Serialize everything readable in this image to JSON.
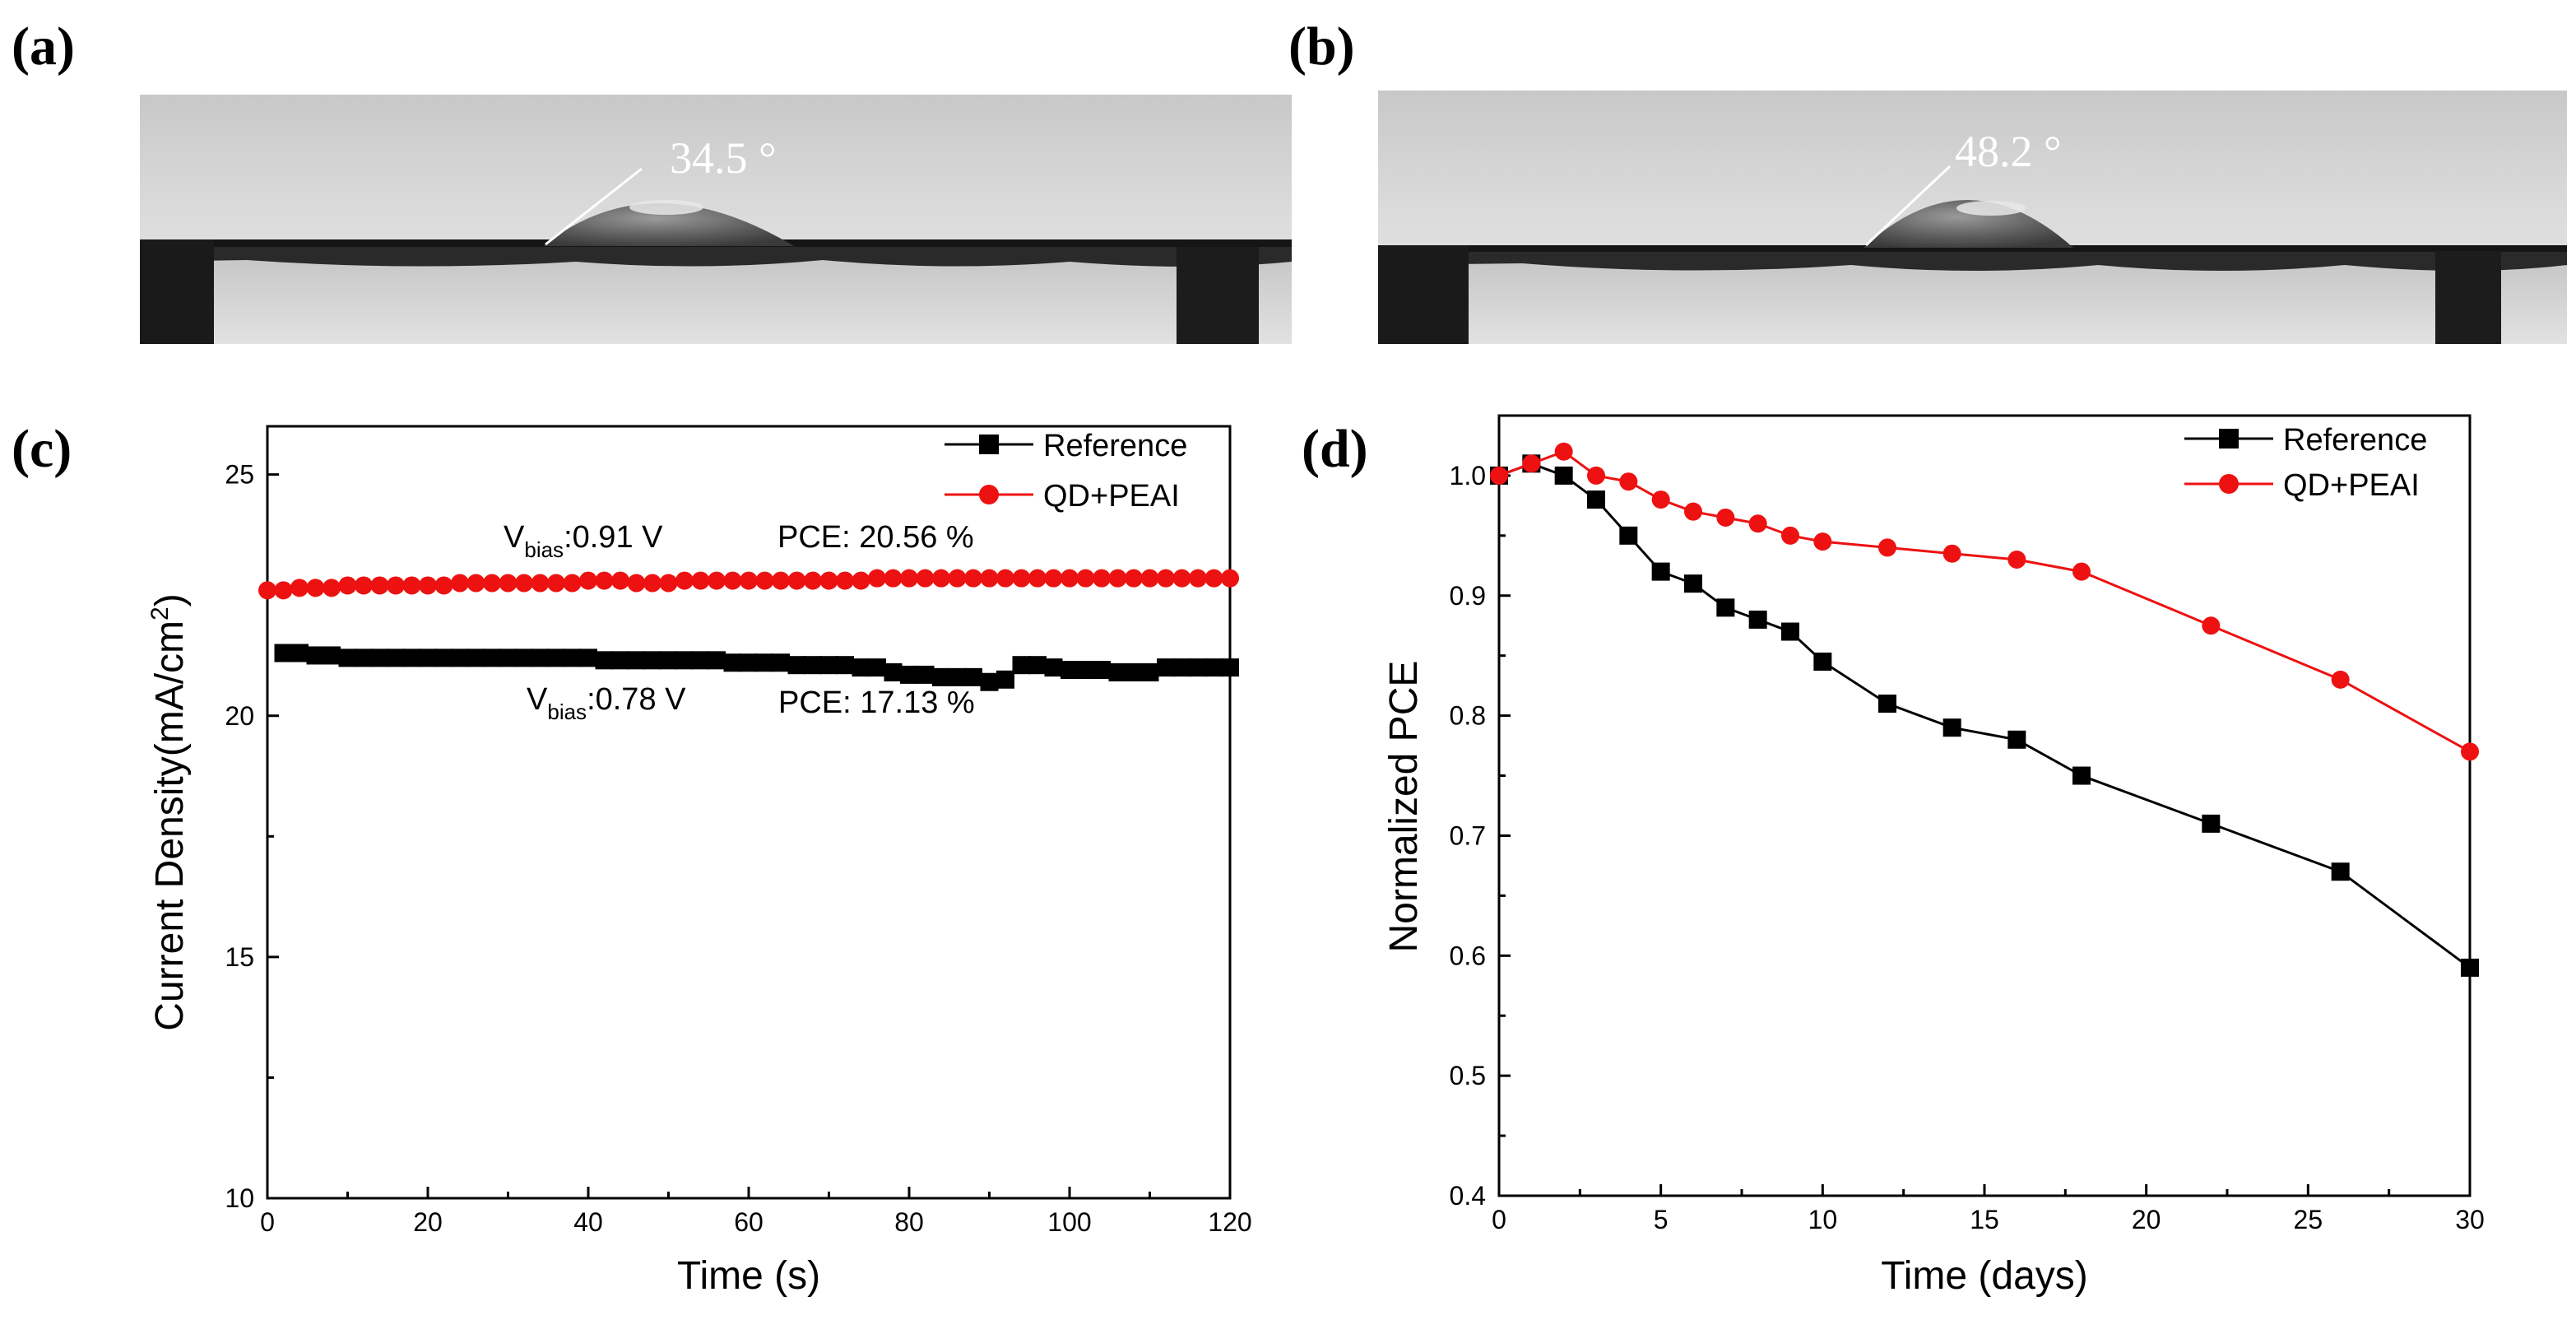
{
  "panels": {
    "a": {
      "label": "(a)",
      "angle_label": "34.5 °"
    },
    "b": {
      "label": "(b)",
      "angle_label": "48.2 °"
    },
    "c": {
      "label": "(c)"
    },
    "d": {
      "label": "(d)"
    }
  },
  "colors": {
    "reference": "#000000",
    "qd_peai": "#ee1111"
  },
  "chart_data": [
    {
      "panel": "c",
      "type": "scatter",
      "xlabel": "Time (s)",
      "ylabel": "Current Density(mA/cm²)",
      "ylabel_main": "Current Density(mA/cm",
      "ylabel_sup": "2",
      "ylabel_end": ")",
      "xlim": [
        0,
        120
      ],
      "ylim": [
        10,
        26
      ],
      "xticks": [
        0,
        20,
        40,
        60,
        80,
        100,
        120
      ],
      "yticks": [
        10,
        15,
        20,
        25
      ],
      "grid": false,
      "legend": "top-right",
      "series": [
        {
          "name": "Reference",
          "color": "#000000",
          "marker": "square",
          "x": [
            2,
            4,
            6,
            8,
            10,
            12,
            14,
            16,
            18,
            20,
            22,
            24,
            26,
            28,
            30,
            32,
            34,
            36,
            38,
            40,
            42,
            44,
            46,
            48,
            50,
            52,
            54,
            56,
            58,
            60,
            62,
            64,
            66,
            68,
            70,
            72,
            74,
            76,
            78,
            80,
            82,
            84,
            86,
            88,
            90,
            92,
            94,
            96,
            98,
            100,
            102,
            104,
            106,
            108,
            110,
            112,
            114,
            116,
            118,
            120
          ],
          "values": [
            21.3,
            21.3,
            21.25,
            21.25,
            21.2,
            21.2,
            21.2,
            21.2,
            21.2,
            21.2,
            21.2,
            21.2,
            21.2,
            21.2,
            21.2,
            21.2,
            21.2,
            21.2,
            21.2,
            21.2,
            21.15,
            21.15,
            21.15,
            21.15,
            21.15,
            21.15,
            21.15,
            21.15,
            21.1,
            21.1,
            21.1,
            21.1,
            21.05,
            21.05,
            21.05,
            21.05,
            21.0,
            21.0,
            20.9,
            20.85,
            20.85,
            20.8,
            20.8,
            20.8,
            20.7,
            20.75,
            21.05,
            21.05,
            21.0,
            20.95,
            20.95,
            20.95,
            20.9,
            20.9,
            20.9,
            21.0,
            21.0,
            21.0,
            21.0,
            21.0
          ]
        },
        {
          "name": "QD+PEAI",
          "color": "#ee1111",
          "marker": "circle",
          "x": [
            0,
            2,
            4,
            6,
            8,
            10,
            12,
            14,
            16,
            18,
            20,
            22,
            24,
            26,
            28,
            30,
            32,
            34,
            36,
            38,
            40,
            42,
            44,
            46,
            48,
            50,
            52,
            54,
            56,
            58,
            60,
            62,
            64,
            66,
            68,
            70,
            72,
            74,
            76,
            78,
            80,
            82,
            84,
            86,
            88,
            90,
            92,
            94,
            96,
            98,
            100,
            102,
            104,
            106,
            108,
            110,
            112,
            114,
            116,
            118,
            120
          ],
          "values": [
            22.6,
            22.6,
            22.65,
            22.65,
            22.65,
            22.7,
            22.7,
            22.7,
            22.7,
            22.7,
            22.7,
            22.7,
            22.75,
            22.75,
            22.75,
            22.75,
            22.75,
            22.75,
            22.75,
            22.75,
            22.8,
            22.8,
            22.8,
            22.75,
            22.75,
            22.75,
            22.8,
            22.8,
            22.8,
            22.8,
            22.8,
            22.8,
            22.8,
            22.8,
            22.8,
            22.8,
            22.8,
            22.8,
            22.85,
            22.85,
            22.85,
            22.85,
            22.85,
            22.85,
            22.85,
            22.85,
            22.85,
            22.85,
            22.85,
            22.85,
            22.85,
            22.85,
            22.85,
            22.85,
            22.85,
            22.85,
            22.85,
            22.85,
            22.85,
            22.85,
            22.85
          ]
        }
      ],
      "annotations": [
        {
          "vbias_main": "V",
          "vbias_sub": "bias",
          "vbias_value": ":0.91 V",
          "pce": "PCE: 20.56 %"
        },
        {
          "vbias_main": "V",
          "vbias_sub": "bias",
          "vbias_value": ":0.78 V",
          "pce": "PCE: 17.13 %"
        }
      ]
    },
    {
      "panel": "d",
      "type": "line",
      "xlabel": "Time (days)",
      "ylabel": "Normalized PCE",
      "xlim": [
        0,
        30
      ],
      "ylim": [
        0.4,
        1.05
      ],
      "xticks": [
        0,
        5,
        10,
        15,
        20,
        25,
        30
      ],
      "yticks": [
        0.4,
        0.5,
        0.6,
        0.7,
        0.8,
        0.9,
        1.0
      ],
      "grid": false,
      "legend": "top-right",
      "series": [
        {
          "name": "Reference",
          "color": "#000000",
          "marker": "square",
          "x": [
            0,
            1,
            2,
            3,
            4,
            5,
            6,
            7,
            8,
            9,
            10,
            12,
            14,
            16,
            18,
            22,
            26,
            30
          ],
          "values": [
            1.0,
            1.01,
            1.0,
            0.98,
            0.95,
            0.92,
            0.91,
            0.89,
            0.88,
            0.87,
            0.845,
            0.81,
            0.79,
            0.78,
            0.75,
            0.71,
            0.67,
            0.59
          ]
        },
        {
          "name": "QD+PEAI",
          "color": "#ee1111",
          "marker": "circle",
          "x": [
            0,
            1,
            2,
            3,
            4,
            5,
            6,
            7,
            8,
            9,
            10,
            12,
            14,
            16,
            18,
            22,
            26,
            30
          ],
          "values": [
            1.0,
            1.01,
            1.02,
            1.0,
            0.995,
            0.98,
            0.97,
            0.965,
            0.96,
            0.95,
            0.945,
            0.94,
            0.935,
            0.93,
            0.92,
            0.875,
            0.83,
            0.77
          ]
        }
      ]
    }
  ]
}
